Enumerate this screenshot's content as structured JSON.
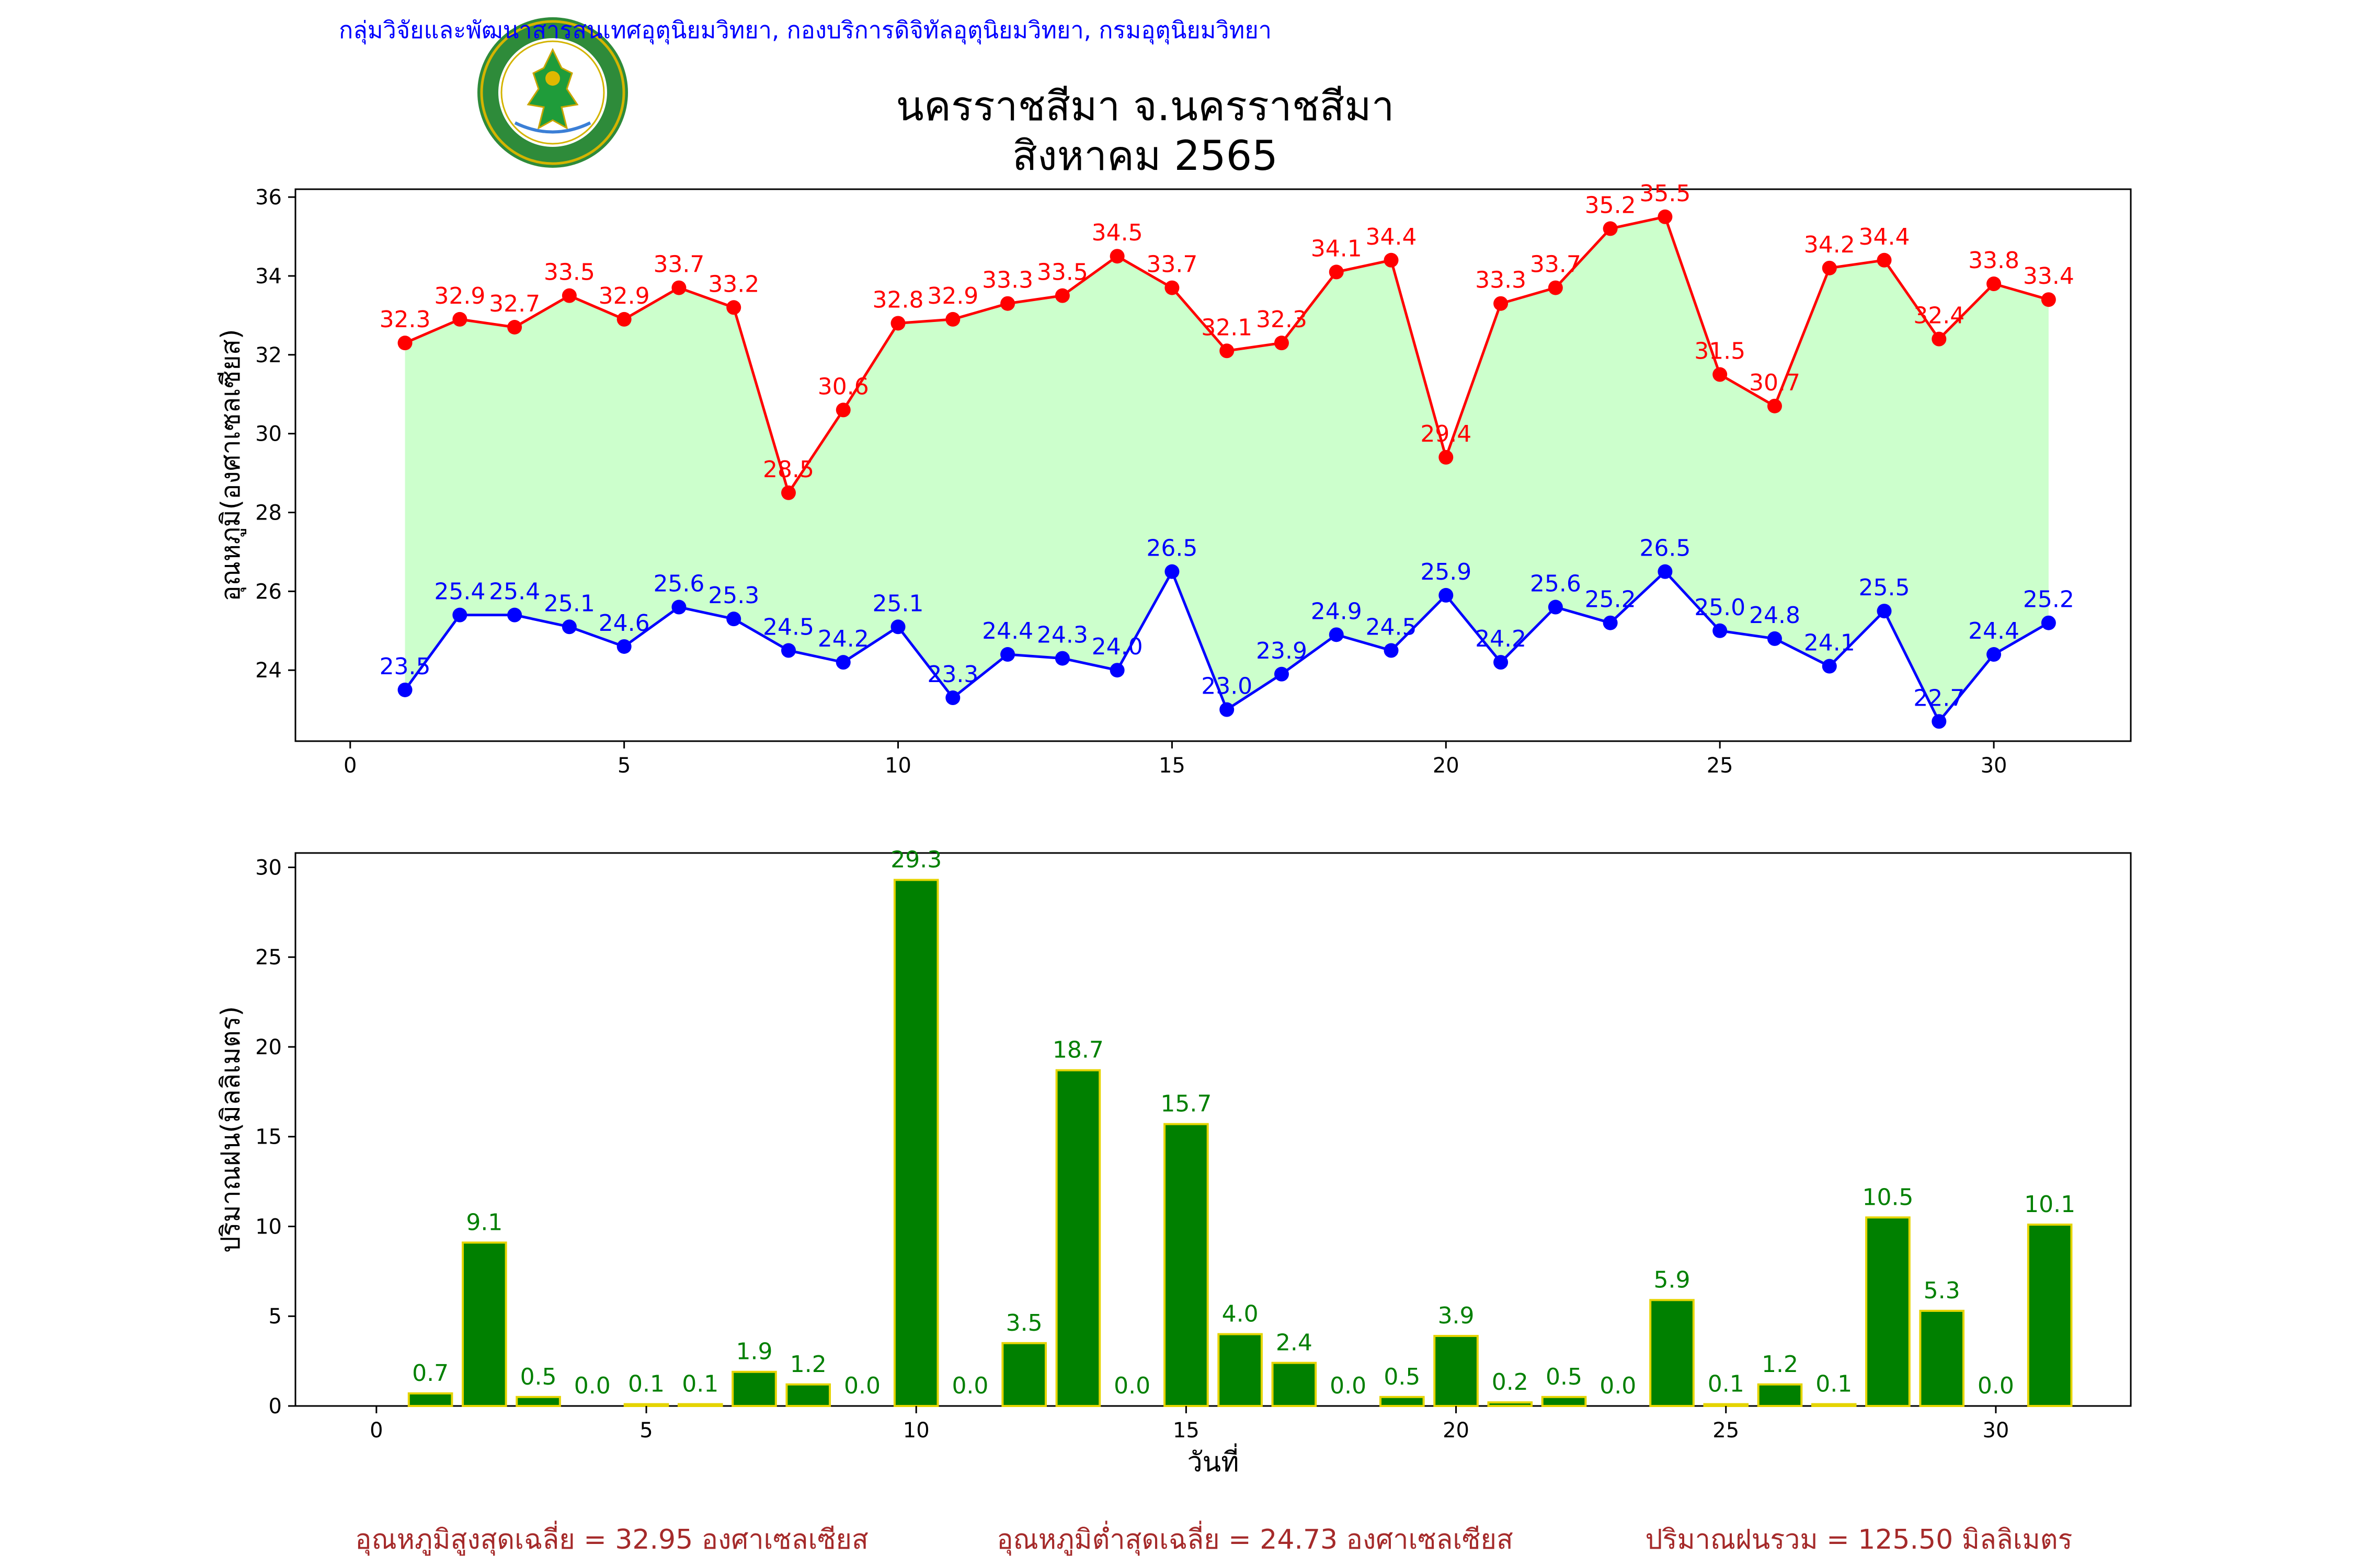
{
  "header": {
    "org_line": "กลุ่มวิจัยและพัฒนาสารสนเทศอุตุนิยมวิทยา, กองบริการดิจิทัลอุตุนิยมวิทยา, กรมอุตุนิยมวิทยา",
    "title_line1": "นครราชสีมา จ.นครราชสีมา",
    "title_line2": "สิงหาคม 2565",
    "logo_text_top": "กรมอุตุนิยมวิทยา",
    "logo_text_bottom": "METEOROLOGICAL DEPARTMENT"
  },
  "colors": {
    "max": "#ff0000",
    "min": "#0000ff",
    "fill": "#ccffcc",
    "bar": "#008000",
    "bar_edge": "#e5d400",
    "org_line": "#0000ff",
    "summary": "#a52a2a"
  },
  "chart_data": [
    {
      "type": "line",
      "ylabel": "อุณหภูมิ(องศาเซลเซียส)",
      "xlim": [
        -1,
        32.5
      ],
      "ylim": [
        22.2,
        36.2
      ],
      "xticks": [
        0,
        5,
        10,
        15,
        20,
        25,
        30
      ],
      "yticks": [
        24,
        26,
        28,
        30,
        32,
        34,
        36
      ],
      "x": [
        1,
        2,
        3,
        4,
        5,
        6,
        7,
        8,
        9,
        10,
        11,
        12,
        13,
        14,
        15,
        16,
        17,
        18,
        19,
        20,
        21,
        22,
        23,
        24,
        25,
        26,
        27,
        28,
        29,
        30,
        31
      ],
      "series": [
        {
          "key": "max",
          "values": [
            32.3,
            32.9,
            32.7,
            33.5,
            32.9,
            33.7,
            33.2,
            28.5,
            30.6,
            32.8,
            32.9,
            33.3,
            33.5,
            34.5,
            33.7,
            32.1,
            32.3,
            34.1,
            34.4,
            29.4,
            33.3,
            33.7,
            35.2,
            35.5,
            31.5,
            30.7,
            34.2,
            34.4,
            32.4,
            33.8,
            33.4
          ]
        },
        {
          "key": "min",
          "values": [
            23.5,
            25.4,
            25.4,
            25.1,
            24.6,
            25.6,
            25.3,
            24.5,
            24.2,
            25.1,
            23.3,
            24.4,
            24.3,
            24.0,
            26.5,
            23.0,
            23.9,
            24.9,
            24.5,
            25.9,
            24.2,
            25.6,
            25.2,
            26.5,
            25.0,
            24.8,
            24.1,
            25.5,
            22.7,
            24.4,
            25.2
          ]
        }
      ]
    },
    {
      "type": "bar",
      "ylabel": "ปริมาณฝน(มิลลิเมตร)",
      "xlabel": "วันที่",
      "xlim": [
        -1.5,
        32.5
      ],
      "ylim": [
        0,
        30.8
      ],
      "xticks": [
        0,
        5,
        10,
        15,
        20,
        25,
        30
      ],
      "yticks": [
        0,
        5,
        10,
        15,
        20,
        25,
        30
      ],
      "x": [
        1,
        2,
        3,
        4,
        5,
        6,
        7,
        8,
        9,
        10,
        11,
        12,
        13,
        14,
        15,
        16,
        17,
        18,
        19,
        20,
        21,
        22,
        23,
        24,
        25,
        26,
        27,
        28,
        29,
        30,
        31
      ],
      "values": [
        0.7,
        9.1,
        0.5,
        0.0,
        0.1,
        0.1,
        1.9,
        1.2,
        0.0,
        29.3,
        0.0,
        3.5,
        18.7,
        0.0,
        15.7,
        4.0,
        2.4,
        0.0,
        0.5,
        3.9,
        0.2,
        0.5,
        0.0,
        5.9,
        0.1,
        1.2,
        0.1,
        10.5,
        5.3,
        0.0,
        10.1
      ]
    }
  ],
  "summary": {
    "avg_max": "อุณหภูมิสูงสุดเฉลี่ย = 32.95 องศาเซลเซียส",
    "avg_min": "อุณหภูมิต่ำสุดเฉลี่ย = 24.73 องศาเซลเซียส",
    "total_rain": "ปริมาณฝนรวม = 125.50 มิลลิเมตร"
  }
}
